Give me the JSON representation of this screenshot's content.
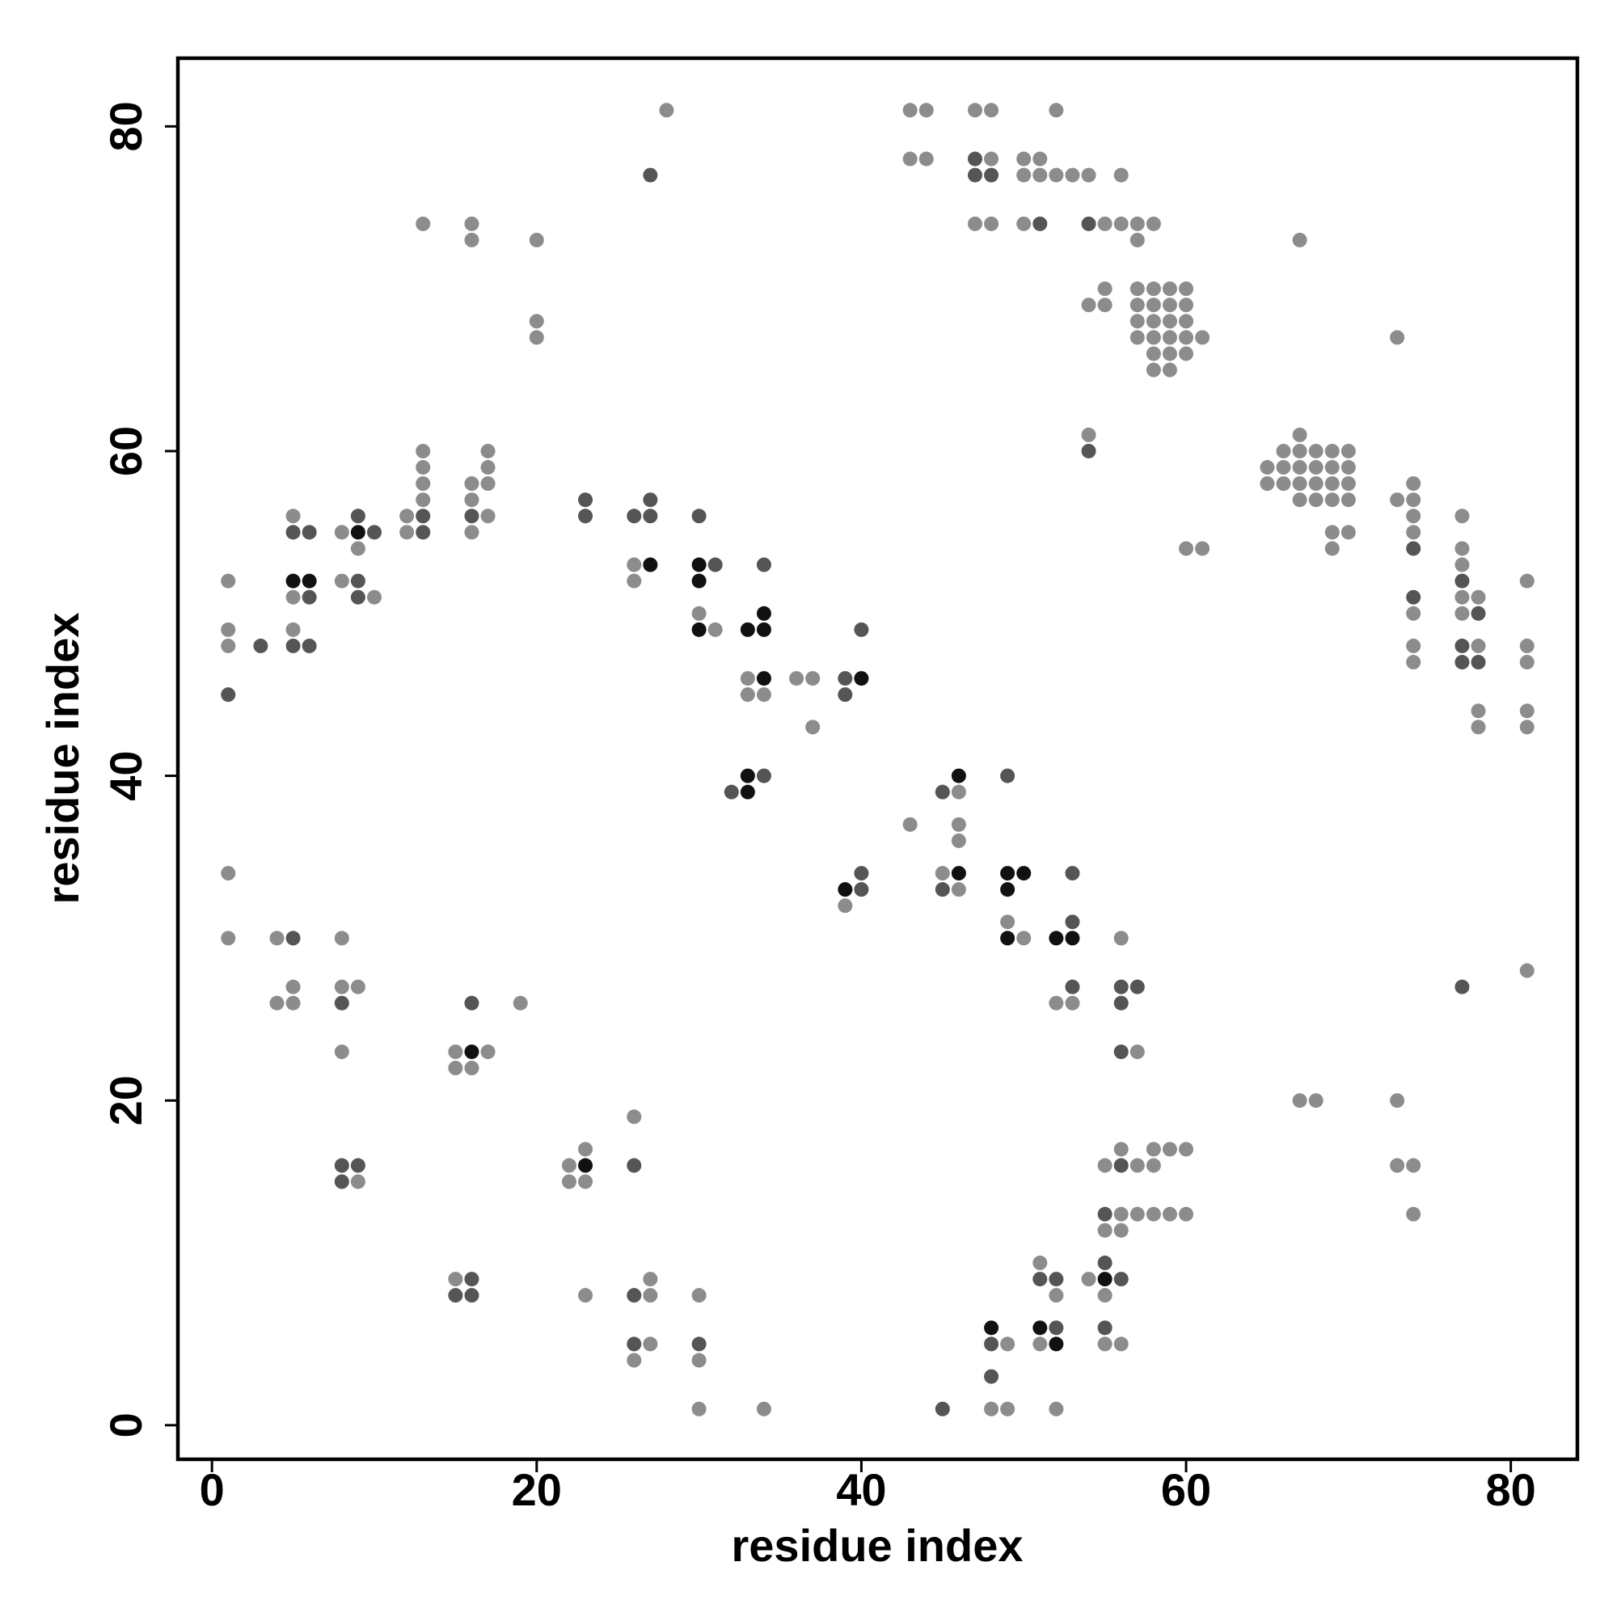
{
  "chart_data": {
    "type": "scatter",
    "x_label": "residue index",
    "y_label": "residue index",
    "xlim": [
      -2.1,
      84.1
    ],
    "ylim": [
      -2.1,
      84.2
    ],
    "xticks": [
      0,
      20,
      40,
      60,
      80
    ],
    "yticks": [
      0,
      20,
      40,
      60,
      80
    ],
    "series": [
      {
        "color": "#8c8c8c",
        "x": [
          28,
          43,
          44,
          43,
          44,
          47,
          48,
          48,
          47,
          48,
          52,
          50,
          51,
          50,
          51,
          52,
          53,
          54,
          56,
          50,
          55,
          56,
          57,
          58,
          57,
          13,
          16,
          16,
          20,
          20,
          20,
          67,
          55,
          54,
          55,
          57,
          58,
          59,
          60,
          57,
          58,
          59,
          60,
          57,
          58,
          59,
          60,
          57,
          58,
          59,
          60,
          61,
          58,
          59,
          60,
          58,
          59,
          73,
          54,
          67,
          66,
          67,
          68,
          69,
          70,
          65,
          66,
          67,
          68,
          69,
          70,
          65,
          66,
          67,
          68,
          69,
          70,
          67,
          68,
          69,
          70,
          69,
          70,
          69,
          60,
          61,
          73,
          74,
          74,
          74,
          74,
          74,
          74,
          74,
          77,
          77,
          77,
          77,
          78,
          77,
          78,
          78,
          78,
          81,
          81,
          81,
          81,
          81,
          1,
          1,
          1,
          5,
          5,
          5,
          8,
          9,
          8,
          10,
          12,
          12,
          13,
          13,
          13,
          13,
          16,
          16,
          17,
          16,
          17,
          17,
          17,
          26,
          26,
          30,
          31,
          33,
          33,
          34,
          36,
          37,
          37,
          43,
          46,
          46,
          46,
          45,
          46,
          39,
          49,
          50,
          52,
          53,
          56,
          57,
          81,
          1,
          1,
          4,
          4,
          5,
          5,
          8,
          8,
          9,
          8,
          15,
          17,
          15,
          16,
          19,
          9,
          22,
          23,
          22,
          23,
          26,
          15,
          23,
          27,
          27,
          27,
          26,
          30,
          30,
          30,
          34,
          67,
          68,
          73,
          73,
          74,
          74,
          55,
          56,
          57,
          58,
          58,
          59,
          60,
          56,
          57,
          58,
          59,
          60,
          55,
          56,
          51,
          52,
          54,
          55,
          49,
          51,
          55,
          56,
          48,
          49,
          52
        ],
        "values": [
          81,
          81,
          81,
          78,
          78,
          81,
          81,
          78,
          74,
          74,
          81,
          78,
          78,
          77,
          77,
          77,
          77,
          77,
          77,
          74,
          74,
          74,
          74,
          74,
          73,
          74,
          74,
          73,
          73,
          68,
          67,
          73,
          70,
          69,
          69,
          70,
          70,
          70,
          70,
          69,
          69,
          69,
          69,
          68,
          68,
          68,
          68,
          67,
          67,
          67,
          67,
          67,
          66,
          66,
          66,
          65,
          65,
          67,
          61,
          61,
          60,
          60,
          60,
          60,
          60,
          59,
          59,
          59,
          59,
          59,
          59,
          58,
          58,
          58,
          58,
          58,
          58,
          57,
          57,
          57,
          57,
          55,
          55,
          54,
          54,
          54,
          57,
          58,
          57,
          56,
          55,
          50,
          48,
          47,
          56,
          54,
          53,
          51,
          51,
          50,
          48,
          44,
          43,
          52,
          48,
          47,
          44,
          43,
          52,
          49,
          48,
          56,
          51,
          49,
          55,
          54,
          52,
          51,
          56,
          55,
          60,
          59,
          58,
          57,
          58,
          57,
          56,
          55,
          60,
          59,
          58,
          53,
          52,
          50,
          49,
          46,
          45,
          45,
          46,
          46,
          43,
          37,
          39,
          37,
          36,
          34,
          33,
          32,
          31,
          30,
          26,
          26,
          30,
          23,
          28,
          34,
          30,
          30,
          26,
          27,
          26,
          30,
          27,
          27,
          23,
          23,
          23,
          22,
          22,
          26,
          15,
          16,
          17,
          15,
          15,
          19,
          9,
          8,
          9,
          8,
          5,
          4,
          8,
          4,
          1,
          1,
          20,
          20,
          20,
          16,
          16,
          13,
          16,
          17,
          16,
          17,
          16,
          17,
          17,
          13,
          13,
          13,
          13,
          13,
          12,
          12,
          10,
          8,
          9,
          8,
          5,
          5,
          5,
          5,
          1,
          1,
          1
        ]
      },
      {
        "color": "#555555",
        "x": [
          27,
          47,
          47,
          48,
          51,
          54,
          54,
          74,
          74,
          77,
          78,
          77,
          77,
          78,
          1,
          3,
          5,
          6,
          6,
          5,
          6,
          9,
          10,
          9,
          9,
          13,
          13,
          16,
          23,
          23,
          26,
          27,
          27,
          30,
          31,
          34,
          39,
          39,
          40,
          32,
          34,
          45,
          45,
          40,
          40,
          49,
          53,
          53,
          53,
          56,
          57,
          56,
          56,
          77,
          5,
          8,
          16,
          8,
          9,
          8,
          26,
          16,
          15,
          16,
          26,
          26,
          30,
          56,
          55,
          51,
          52,
          55,
          56,
          48,
          52,
          55,
          48,
          45
        ],
        "values": [
          77,
          78,
          77,
          77,
          74,
          74,
          60,
          54,
          51,
          52,
          50,
          48,
          47,
          47,
          45,
          48,
          55,
          55,
          51,
          48,
          48,
          56,
          55,
          52,
          51,
          56,
          55,
          56,
          57,
          56,
          56,
          57,
          56,
          56,
          53,
          53,
          46,
          45,
          49,
          39,
          40,
          39,
          33,
          34,
          33,
          40,
          34,
          31,
          27,
          27,
          27,
          26,
          23,
          27,
          30,
          26,
          26,
          16,
          16,
          15,
          16,
          9,
          8,
          8,
          8,
          5,
          5,
          16,
          13,
          9,
          9,
          10,
          9,
          5,
          6,
          6,
          3,
          1
        ]
      },
      {
        "color": "#111111",
        "x": [
          5,
          6,
          9,
          27,
          30,
          30,
          30,
          34,
          33,
          34,
          34,
          40,
          33,
          33,
          46,
          46,
          39,
          49,
          50,
          49,
          49,
          52,
          53,
          16,
          23,
          55,
          48,
          51,
          52
        ],
        "values": [
          52,
          52,
          55,
          53,
          53,
          52,
          49,
          50,
          49,
          49,
          46,
          46,
          40,
          39,
          40,
          34,
          33,
          34,
          34,
          33,
          30,
          30,
          30,
          23,
          16,
          9,
          6,
          6,
          5
        ]
      }
    ]
  }
}
